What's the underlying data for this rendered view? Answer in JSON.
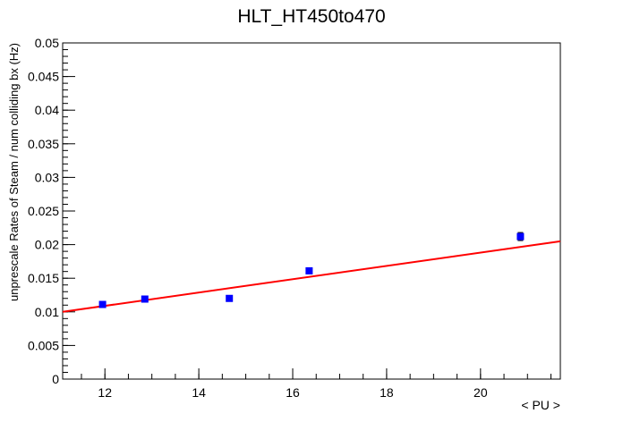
{
  "chart_data": {
    "type": "scatter",
    "title": "HLT_HT450to470",
    "xlabel": "< PU >",
    "ylabel": "unprescale Rates of Steam / num colliding bx (Hz)",
    "xlim": [
      11.1,
      21.7
    ],
    "ylim": [
      0,
      0.05
    ],
    "x_ticks": [
      12,
      14,
      16,
      18,
      20
    ],
    "x_tick_labels": [
      "12",
      "14",
      "16",
      "18",
      "20"
    ],
    "y_ticks": [
      0,
      0.005,
      0.01,
      0.015,
      0.02,
      0.025,
      0.03,
      0.035,
      0.04,
      0.045,
      0.05
    ],
    "y_tick_labels": [
      "0",
      "0.005",
      "0.01",
      "0.015",
      "0.02",
      "0.025",
      "0.03",
      "0.035",
      "0.04",
      "0.045",
      "0.05"
    ],
    "grid": false,
    "series": [
      {
        "color": "#0000ff",
        "marker": "square",
        "x": [
          11.95,
          12.85,
          14.65,
          16.35,
          20.85
        ],
        "y": [
          0.0111,
          0.0119,
          0.012,
          0.0161,
          0.0212
        ],
        "yerr": [
          0.0002,
          0.0002,
          0.0002,
          0.0003,
          0.0006
        ]
      }
    ],
    "fit": {
      "color": "#ff0000",
      "x": [
        11.1,
        21.7
      ],
      "y": [
        0.01,
        0.0205
      ]
    }
  }
}
